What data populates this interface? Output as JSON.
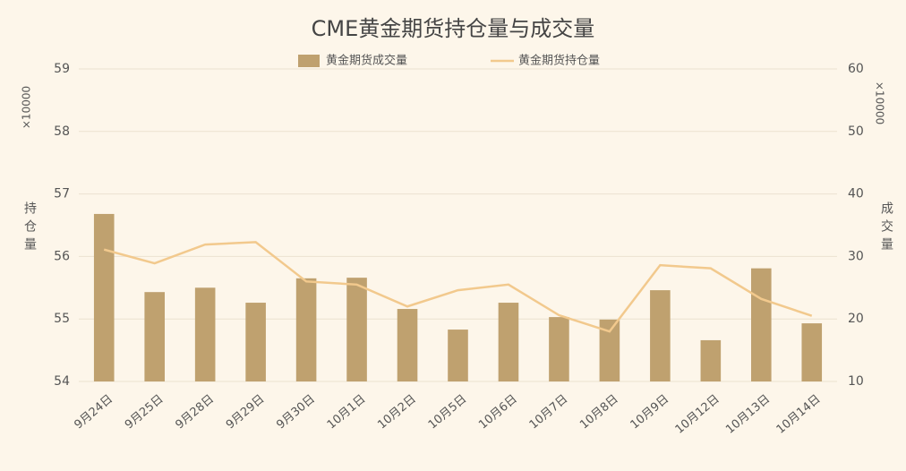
{
  "chart_data": {
    "type": "combo",
    "title": "CME黄金期货持仓量与成交量",
    "categories": [
      "9月24日",
      "9月25日",
      "9月28日",
      "9月29日",
      "9月30日",
      "10月1日",
      "10月2日",
      "10月5日",
      "10月6日",
      "10月7日",
      "10月8日",
      "10月9日",
      "10月12日",
      "10月13日",
      "10月14日"
    ],
    "series": [
      {
        "name": "黄金期货成交量",
        "type": "bar",
        "axis": "y2",
        "color": "#bfa16f",
        "values": [
          36.8,
          24.3,
          25.0,
          22.6,
          26.5,
          26.6,
          21.6,
          18.3,
          22.6,
          20.3,
          19.9,
          24.6,
          16.6,
          28.1,
          19.3
        ]
      },
      {
        "name": "黄金期货持仓量",
        "type": "line",
        "axis": "y",
        "color": "#f2c98d",
        "values": [
          56.11,
          55.89,
          56.19,
          56.23,
          55.6,
          55.55,
          55.2,
          55.46,
          55.55,
          55.06,
          54.8,
          55.86,
          55.81,
          55.32,
          55.05
        ]
      }
    ],
    "ylim": [
      54,
      59
    ],
    "yticks": [
      54,
      55,
      56,
      57,
      58,
      59
    ],
    "y2lim": [
      10,
      60
    ],
    "y2ticks": [
      10,
      20,
      30,
      40,
      50,
      60
    ],
    "y_label": "持仓量",
    "y2_label": "成交量",
    "y_unit": "×10000",
    "y2_unit": "×10000",
    "grid": true
  }
}
